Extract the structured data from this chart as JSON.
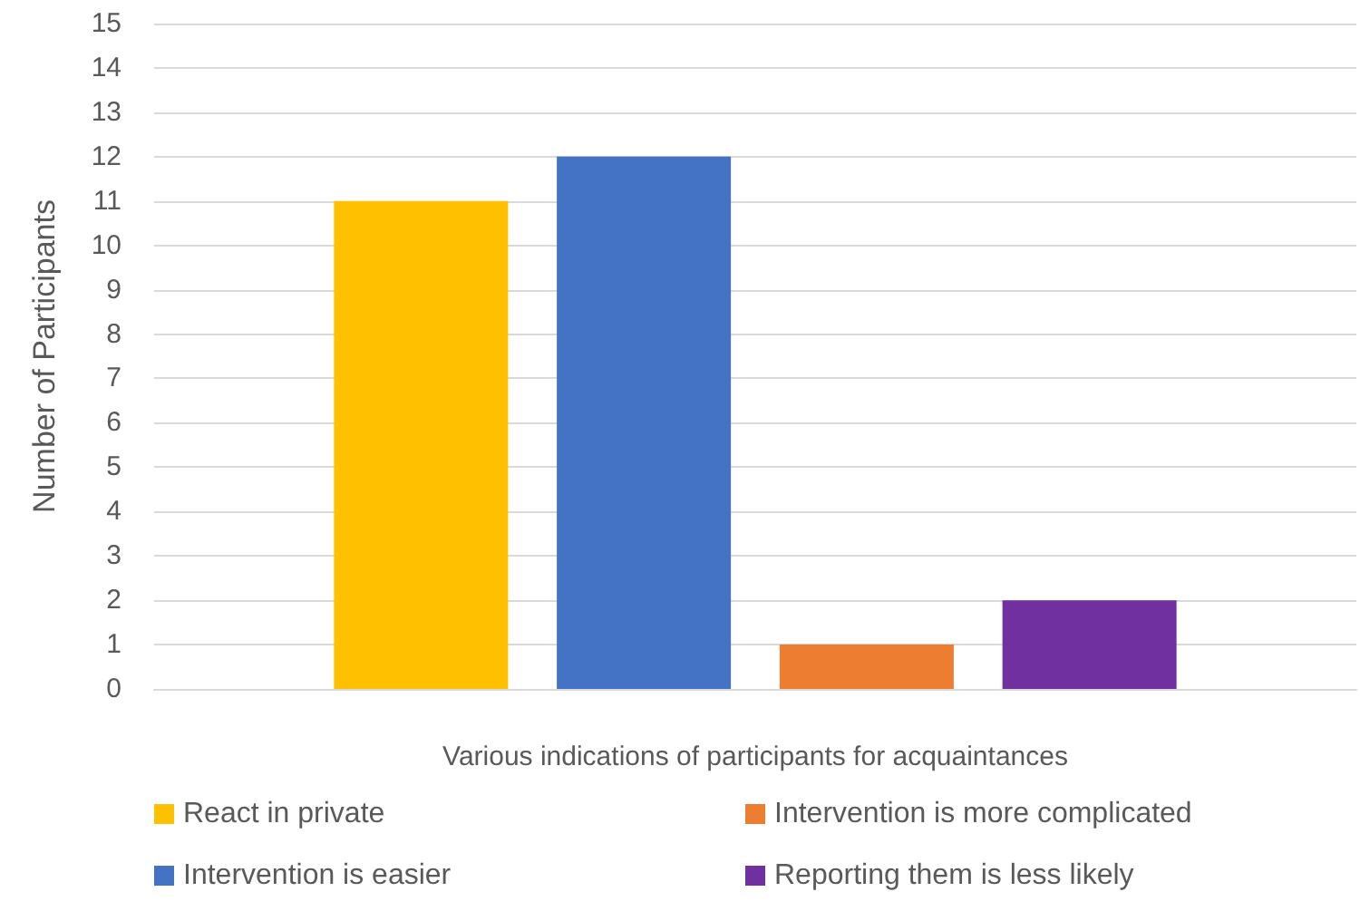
{
  "chart_data": {
    "type": "bar",
    "xlabel": "Various indications of participants for acquaintances",
    "ylabel": "Number of Participants",
    "categories": [
      null
    ],
    "series": [
      {
        "name": "React in private",
        "color": "#ffc000",
        "values": [
          11
        ]
      },
      {
        "name": "Intervention is easier",
        "color": "#4472c4",
        "values": [
          12
        ]
      },
      {
        "name": "Intervention is more complicated",
        "color": "#ed7d31",
        "values": [
          1
        ]
      },
      {
        "name": "Reporting them is less likely",
        "color": "#7030a0",
        "values": [
          2
        ]
      }
    ],
    "ylim": [
      0,
      15
    ],
    "yticks": [
      0,
      1,
      2,
      3,
      4,
      5,
      6,
      7,
      8,
      9,
      10,
      11,
      12,
      13,
      14,
      15
    ],
    "grid": "y",
    "legend": "bottom"
  }
}
